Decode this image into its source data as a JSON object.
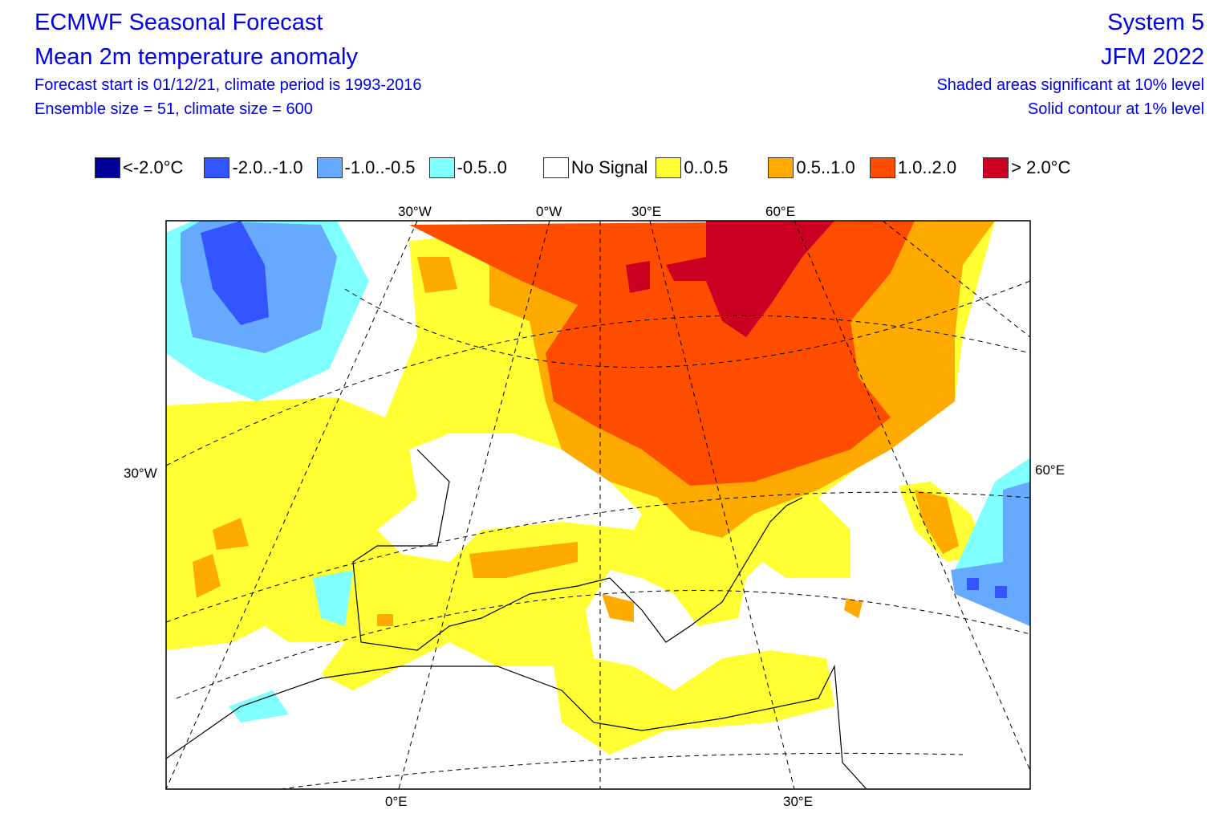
{
  "header": {
    "title": "ECMWF Seasonal Forecast",
    "subtitle": "Mean 2m temperature anomaly",
    "line1": "Forecast start is 01/12/21, climate period is 1993-2016",
    "line2": "Ensemble size = 51, climate size = 600",
    "system": "System 5",
    "period": "JFM 2022",
    "sig1": "Shaded areas significant at 10% level",
    "sig2": "Solid contour at 1% level"
  },
  "legend": [
    {
      "label": "<-2.0°C",
      "color": "#000099"
    },
    {
      "label": "-2.0..-1.0",
      "color": "#3355ff"
    },
    {
      "label": "-1.0..-0.5",
      "color": "#66aaff"
    },
    {
      "label": "-0.5..0",
      "color": "#80ffff"
    },
    {
      "label": "No Signal",
      "color": "#ffffff"
    },
    {
      "label": "0..0.5",
      "color": "#ffff33"
    },
    {
      "label": "0.5..1.0",
      "color": "#ffaa00"
    },
    {
      "label": "1.0..2.0",
      "color": "#ff4d00"
    },
    {
      "label": "> 2.0°C",
      "color": "#cc0022"
    }
  ],
  "axes": {
    "top": [
      "30°W",
      "0°W",
      "30°E",
      "60°E"
    ],
    "left": "30°W",
    "right": "60°E",
    "bottom": [
      "0°E",
      "30°E"
    ]
  }
}
